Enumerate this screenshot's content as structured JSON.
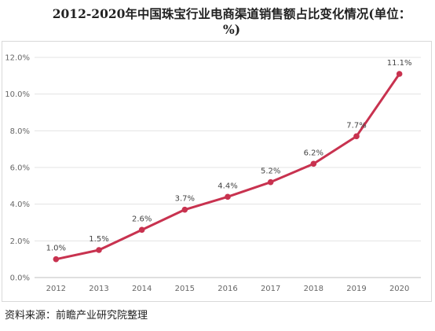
{
  "title": "2012-2020年中国珠宝行业电商渠道销售额占比变化情况(单位：%)",
  "source": "资料来源：前瞻产业研究院整理",
  "colors": {
    "line": "#c8324f",
    "grid": "#e3e3e3",
    "axis": "#bfbfbf"
  },
  "chart_data": {
    "type": "line",
    "title": "2012-2020年中国珠宝行业电商渠道销售额占比变化情况(单位：%)",
    "xlabel": "",
    "ylabel": "",
    "categories": [
      "2012",
      "2013",
      "2014",
      "2015",
      "2016",
      "2017",
      "2018",
      "2019",
      "2020"
    ],
    "series": [
      {
        "values": [
          1.0,
          1.5,
          2.6,
          3.7,
          4.4,
          5.2,
          6.2,
          7.7,
          11.1
        ],
        "labels": [
          "1.0%",
          "1.5%",
          "2.6%",
          "3.7%",
          "4.4%",
          "5.2%",
          "6.2%",
          "7.7%",
          "11.1%"
        ]
      }
    ],
    "ylim": [
      0,
      12
    ],
    "yticks": [
      "0.0%",
      "2.0%",
      "4.0%",
      "6.0%",
      "8.0%",
      "10.0%",
      "12.0%"
    ],
    "grid": true,
    "legend": "none"
  }
}
